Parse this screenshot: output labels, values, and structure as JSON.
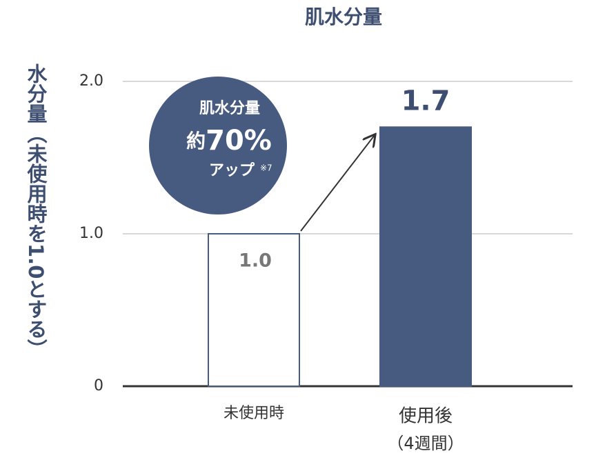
{
  "chart_data": {
    "type": "bar",
    "title": "肌水分量",
    "y_label": "水分量（未使用時を1.0とする）",
    "categories": [
      "未使用時",
      "使用後"
    ],
    "x_sublabels": [
      null,
      "（4週間）"
    ],
    "values": [
      1.0,
      1.7
    ],
    "value_labels": [
      "1.0",
      "1.7"
    ],
    "colors": [
      "#ffffff",
      "#475a80"
    ],
    "edge_color": "#475a80",
    "ylim": [
      0,
      2
    ],
    "yticks": [
      0,
      {
        "value": 1,
        "label": "1.0"
      },
      {
        "value": 2,
        "label": "2.0"
      }
    ],
    "grid": true,
    "annotation": {
      "title": "肌水分量",
      "prefix": "約",
      "amount": "70%",
      "suffix": "アップ",
      "note": "※7"
    }
  }
}
